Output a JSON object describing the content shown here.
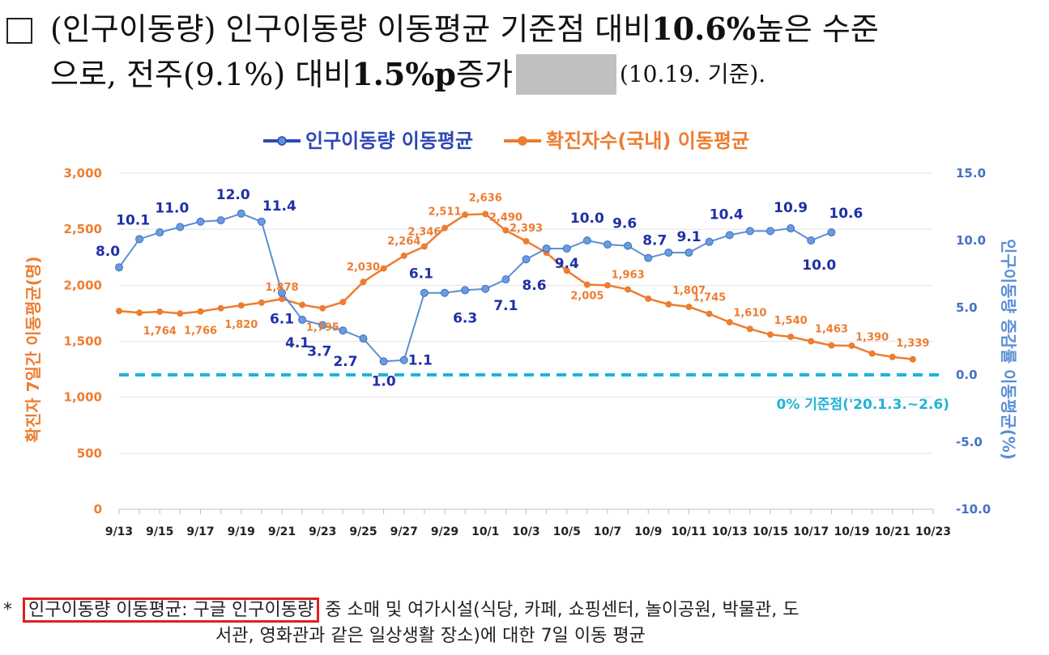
{
  "heading": {
    "line1_prefix": "(인구이동량) 인구이동량  이동평균  기준점  대비 ",
    "line1_bold": "10.6%",
    "line1_suffix": " 높은  수준",
    "line2_prefix": "으로,  전주(9.1%)  대비 ",
    "line2_bold": "1.5%p",
    "line2_suffix": " 증가",
    "line2_paren": "(10.19. 기준)."
  },
  "chart_data": {
    "type": "line",
    "legend": [
      "인구이동량 이동평균",
      "확진자수(국내) 이동평균"
    ],
    "left_axis_label": "확진자 7일간 이동평균(명)",
    "right_axis_label": "인구이동량 증감률 이동평균(%)",
    "left_ticks": [
      "3,000",
      "2,500",
      "2,000",
      "1,500",
      "1,000",
      "500",
      "0"
    ],
    "right_ticks": [
      "15.0",
      "10.0",
      "5.0",
      "0.0",
      "-5.0",
      "-10.0"
    ],
    "ylim_left": [
      0,
      3000
    ],
    "ylim_right": [
      -10,
      15
    ],
    "x_tick_labels": [
      "9/13",
      "9/15",
      "9/17",
      "9/19",
      "9/21",
      "9/23",
      "9/25",
      "9/27",
      "9/29",
      "10/1",
      "10/3",
      "10/5",
      "10/7",
      "10/9",
      "10/11",
      "10/13",
      "10/15",
      "10/17",
      "10/19",
      "10/21",
      "10/23"
    ],
    "baseline_label": "0% 기준점('20.1.3.~2.6)",
    "series": [
      {
        "name": "확진자수(국내) 이동평균",
        "axis": "left",
        "color": "#ed7d31",
        "values": [
          1770,
          1755,
          1764,
          1748,
          1766,
          1795,
          1820,
          1845,
          1878,
          1825,
          1795,
          1850,
          2030,
          2150,
          2264,
          2346,
          2511,
          2630,
          2636,
          2490,
          2393,
          2290,
          2130,
          2005,
          2000,
          1963,
          1880,
          1830,
          1807,
          1745,
          1670,
          1610,
          1560,
          1540,
          1500,
          1463,
          1460,
          1390,
          1360,
          1339
        ],
        "labels": {
          "2": "1,764",
          "4": "1,766",
          "6": "1,820",
          "8": "1,878",
          "10": "1,795",
          "12": "2,030",
          "14": "2,264",
          "15": "2,346",
          "16": "2,511",
          "18": "2,636",
          "19": "2,490",
          "20": "2,393",
          "23": "2,005",
          "25": "1,963",
          "28": "1,807",
          "29": "1,745",
          "31": "1,610",
          "33": "1,540",
          "35": "1,463",
          "37": "1,390",
          "39": "1,339"
        }
      },
      {
        "name": "인구이동량 이동평균",
        "axis": "right",
        "color": "#5b8fd6",
        "values": [
          8.0,
          10.1,
          10.6,
          11.0,
          11.4,
          11.5,
          12.0,
          11.4,
          6.1,
          4.1,
          3.7,
          3.3,
          2.7,
          1.0,
          1.1,
          6.1,
          6.1,
          6.3,
          6.4,
          7.1,
          8.6,
          9.4,
          9.4,
          10.0,
          9.7,
          9.6,
          8.7,
          9.1,
          9.1,
          9.9,
          10.4,
          10.7,
          10.7,
          10.9,
          10.0,
          10.6
        ],
        "labels": {
          "0": "8.0",
          "1": "10.1",
          "3": "11.0",
          "6": "12.0",
          "7": "11.4",
          "8": "6.1",
          "9": "4.1",
          "10": "3.7",
          "12": "2.7",
          "13": "1.0",
          "14": "1.1",
          "15": "6.1",
          "17": "6.3",
          "19": "7.1",
          "20": "8.6",
          "22": "9.4",
          "23": "10.0",
          "25": "9.6",
          "26": "8.7",
          "28": "9.1",
          "30": "10.4",
          "33": "10.9",
          "34": "10.0",
          "35": "10.6"
        }
      }
    ]
  },
  "footnote": {
    "bullet": "*",
    "highlight": "인구이동량 이동평균: 구글 인구이동량",
    "rest": "중 소매 및 여가시설(식당, 카페, 쇼핑센터, 놀이공원, 박물관, 도",
    "line2": "서관, 영화관과 같은 일상생활 장소)에 대한 7일 이동 평균"
  }
}
